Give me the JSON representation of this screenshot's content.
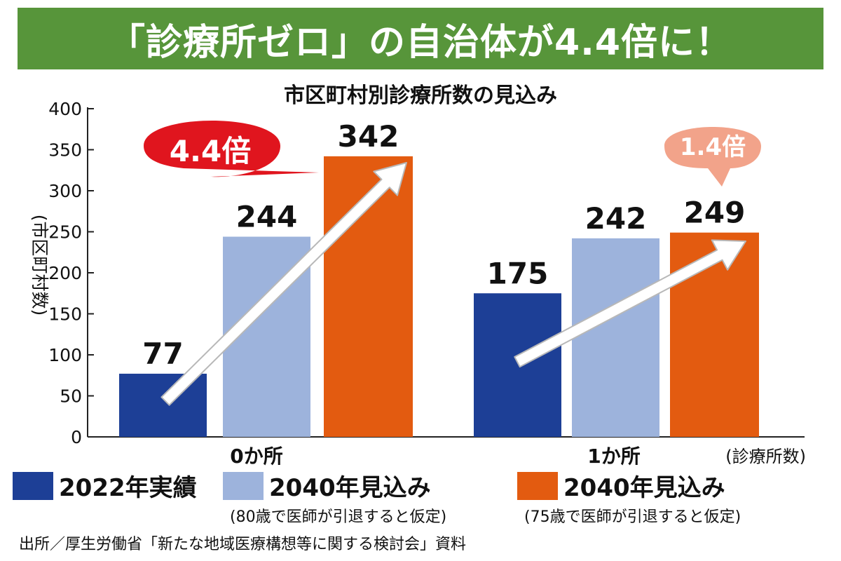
{
  "header": {
    "title": "「診療所ゼロ」の自治体が4.4倍に！"
  },
  "chart_data": {
    "type": "bar",
    "title": "市区町村別診療所数の見込み",
    "xlabel": "(診療所数)",
    "ylabel": "(市区町村数)",
    "ylim": [
      0,
      400
    ],
    "yticks": [
      "0",
      "50",
      "100",
      "150",
      "200",
      "250",
      "300",
      "350",
      "400"
    ],
    "categories": [
      "0か所",
      "1か所"
    ],
    "series": [
      {
        "name": "2022年実績",
        "values": [
          77,
          175
        ],
        "color": "#1d3f96"
      },
      {
        "name": "2040年見込み",
        "note": "(80歳で医師が引退すると仮定)",
        "values": [
          244,
          242
        ],
        "color": "#9db3dc"
      },
      {
        "name": "2040年見込み",
        "note": "(75歳で医師が引退すると仮定)",
        "values": [
          342,
          249
        ],
        "color": "#e35b10"
      }
    ],
    "data_labels": [
      [
        "77",
        "175"
      ],
      [
        "244",
        "242"
      ],
      [
        "342",
        "249"
      ]
    ],
    "annotations": [
      {
        "text": "4.4倍",
        "category": "0か所",
        "color": "#e0151e",
        "text_color": "#ffffff"
      },
      {
        "text": "1.4倍",
        "category": "1か所",
        "color": "#f2a38a",
        "text_color": "#ffffff"
      }
    ],
    "grid": false,
    "legend": "bottom"
  },
  "footer": {
    "source": "出所／厚生労働省「新たな地域医療構想等に関する検討会」資料"
  }
}
